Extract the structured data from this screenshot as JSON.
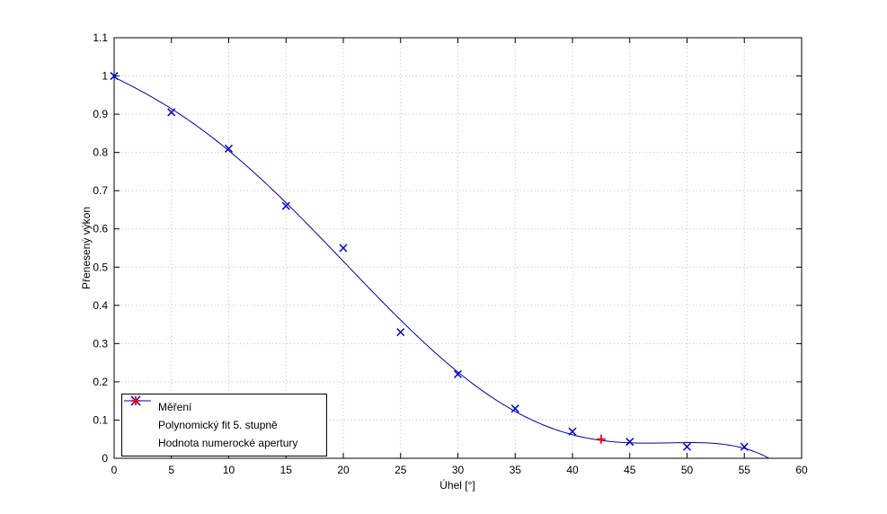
{
  "figure": {
    "background": "#ffffff"
  },
  "chart_data": {
    "type": "scatter",
    "title": "",
    "xlabel": "Úhel [°]",
    "ylabel": "Přenesený výkon",
    "xlim": [
      0,
      60
    ],
    "ylim": [
      0,
      1.1
    ],
    "xticks": [
      0,
      5,
      10,
      15,
      20,
      25,
      30,
      35,
      40,
      45,
      50,
      55,
      60
    ],
    "yticks": [
      0,
      0.1,
      0.2,
      0.3,
      0.4,
      0.5,
      0.6,
      0.7,
      0.8,
      0.9,
      1,
      1.1
    ],
    "ytick_labels": [
      "0",
      "0.1",
      "0.2",
      "0.3",
      "0.4",
      "0.5",
      "0.6",
      "0.7",
      "0.8",
      "0.9",
      "1",
      "1.1"
    ],
    "grid": true,
    "grid_color": "#c3c3c3",
    "legend_position": "lower-left",
    "series": [
      {
        "name": "Měření",
        "type": "scatter",
        "marker": "x",
        "color": "#0000CC",
        "x": [
          0,
          5,
          10,
          15,
          20,
          25,
          30,
          35,
          40,
          45,
          50,
          55
        ],
        "y": [
          1.0,
          0.905,
          0.81,
          0.66,
          0.55,
          0.33,
          0.22,
          0.13,
          0.07,
          0.043,
          0.03,
          0.03
        ]
      },
      {
        "name": "Polynomický fit 5. stupně",
        "type": "line",
        "color": "#0000A0",
        "fit": {
          "kind": "polynomial",
          "degree": 5,
          "source_series": 0,
          "x_range": [
            0,
            60
          ]
        }
      },
      {
        "name": "Hodnota numerocké apertury",
        "type": "scatter",
        "marker": "+",
        "color": "#FF0000",
        "x": [
          42.5
        ],
        "y": [
          0.05
        ]
      }
    ]
  }
}
